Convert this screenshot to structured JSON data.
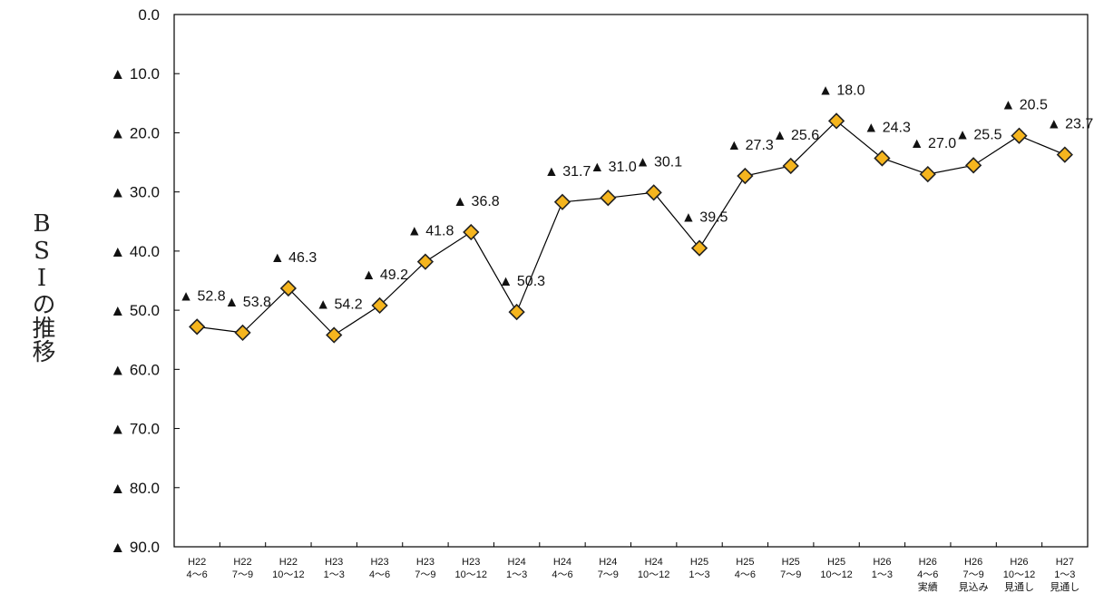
{
  "chart_data": {
    "type": "line",
    "title": "",
    "xlabel": "",
    "ylabel": "BSIの推移",
    "ylim": [
      0,
      90
    ],
    "y_inverted": true,
    "y_ticks": [
      "0.0",
      "▲ 10.0",
      "▲ 20.0",
      "▲ 30.0",
      "▲ 40.0",
      "▲ 50.0",
      "▲ 60.0",
      "▲ 70.0",
      "▲ 80.0",
      "▲ 90.0"
    ],
    "grid": false,
    "legend": "none",
    "categories": [
      [
        "H22",
        "4～6"
      ],
      [
        "H22",
        "7～9"
      ],
      [
        "H22",
        "10～12"
      ],
      [
        "H23",
        "1～3"
      ],
      [
        "H23",
        "4～6"
      ],
      [
        "H23",
        "7～9"
      ],
      [
        "H23",
        "10～12"
      ],
      [
        "H24",
        "1～3"
      ],
      [
        "H24",
        "4～6"
      ],
      [
        "H24",
        "7～9"
      ],
      [
        "H24",
        "10～12"
      ],
      [
        "H25",
        "1～3"
      ],
      [
        "H25",
        "4～6"
      ],
      [
        "H25",
        "7～9"
      ],
      [
        "H25",
        "10～12"
      ],
      [
        "H26",
        "1～3"
      ],
      [
        "H26",
        "4～6",
        "実績"
      ],
      [
        "H26",
        "7～9",
        "見込み"
      ],
      [
        "H26",
        "10～12",
        "見通し"
      ],
      [
        "H27",
        "1～3",
        "見通し"
      ]
    ],
    "series": [
      {
        "values": [
          52.8,
          53.8,
          46.3,
          54.2,
          49.2,
          41.8,
          36.8,
          50.3,
          31.7,
          31.0,
          30.1,
          39.5,
          27.3,
          25.6,
          18.0,
          24.3,
          27.0,
          25.5,
          20.5,
          23.7
        ],
        "data_labels": [
          "▲ 52.8",
          "▲ 53.8",
          "▲ 46.3",
          "▲ 54.2",
          "▲ 49.2",
          "▲ 41.8",
          "▲ 36.8",
          "▲ 50.3",
          "▲ 31.7",
          "▲ 31.0",
          "▲ 30.1",
          "▲ 39.5",
          "▲ 27.3",
          "▲ 25.6",
          "▲ 18.0",
          "▲ 24.3",
          "▲ 27.0",
          "▲ 25.5",
          "▲ 20.5",
          "▲ 23.7"
        ],
        "marker": "diamond",
        "marker_color": "#f5b51e",
        "line_color": "#000000"
      }
    ]
  }
}
